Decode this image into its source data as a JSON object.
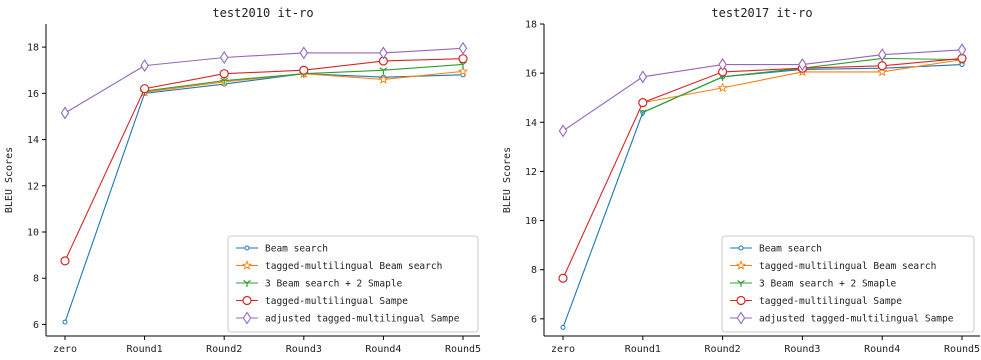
{
  "chart_data": [
    {
      "type": "line",
      "title": "test2010 it-ro",
      "xlabel": "",
      "ylabel": "BLEU Scores",
      "categories": [
        "zero",
        "Round1",
        "Round2",
        "Round3",
        "Round4",
        "Round5"
      ],
      "ylim": [
        5.5,
        19.0
      ],
      "yticks": [
        6,
        8,
        10,
        12,
        14,
        16,
        18
      ],
      "grid": false,
      "legend_position": "lower-right",
      "series": [
        {
          "name": "Beam search",
          "color": "#1f77b4",
          "marker": "circle-small",
          "values": [
            6.1,
            16.0,
            16.4,
            16.85,
            16.7,
            16.8
          ]
        },
        {
          "name": "tagged-multilingual Beam search",
          "color": "#ff7f0e",
          "marker": "star",
          "values": [
            null,
            16.05,
            16.5,
            16.85,
            16.6,
            16.95
          ]
        },
        {
          "name": "3 Beam search + 2 Smaple",
          "color": "#2ca02c",
          "marker": "tri-down",
          "values": [
            null,
            16.1,
            16.55,
            16.85,
            17.0,
            17.25
          ]
        },
        {
          "name": "tagged-multilingual Sampe",
          "color": "#d62728",
          "marker": "circle",
          "values": [
            8.75,
            16.2,
            16.85,
            17.0,
            17.4,
            17.5
          ]
        },
        {
          "name": "adjusted tagged-multilingual Sampe",
          "color": "#9467bd",
          "marker": "diamond",
          "values": [
            15.15,
            17.2,
            17.55,
            17.75,
            17.75,
            17.95
          ]
        }
      ]
    },
    {
      "type": "line",
      "title": "test2017 it-ro",
      "xlabel": "",
      "ylabel": "BLEU Scores",
      "categories": [
        "zero",
        "Round1",
        "Round2",
        "Round3",
        "Round4",
        "Round5"
      ],
      "ylim": [
        5.3,
        18.0
      ],
      "yticks": [
        6,
        8,
        10,
        12,
        14,
        16,
        18
      ],
      "grid": false,
      "legend_position": "lower-right",
      "series": [
        {
          "name": "Beam search",
          "color": "#1f77b4",
          "marker": "circle-small",
          "values": [
            5.65,
            14.4,
            15.85,
            16.15,
            16.2,
            16.35
          ]
        },
        {
          "name": "tagged-multilingual Beam search",
          "color": "#ff7f0e",
          "marker": "star",
          "values": [
            null,
            14.8,
            15.4,
            16.05,
            16.05,
            16.55
          ]
        },
        {
          "name": "3 Beam search + 2 Smaple",
          "color": "#2ca02c",
          "marker": "tri-down",
          "values": [
            null,
            14.4,
            15.85,
            16.2,
            16.6,
            16.55
          ]
        },
        {
          "name": "tagged-multilingual Sampe",
          "color": "#d62728",
          "marker": "circle",
          "values": [
            7.65,
            14.8,
            16.05,
            16.2,
            16.3,
            16.6
          ]
        },
        {
          "name": "adjusted tagged-multilingual Sampe",
          "color": "#9467bd",
          "marker": "diamond",
          "values": [
            13.65,
            15.85,
            16.35,
            16.35,
            16.75,
            16.95
          ]
        }
      ]
    }
  ]
}
